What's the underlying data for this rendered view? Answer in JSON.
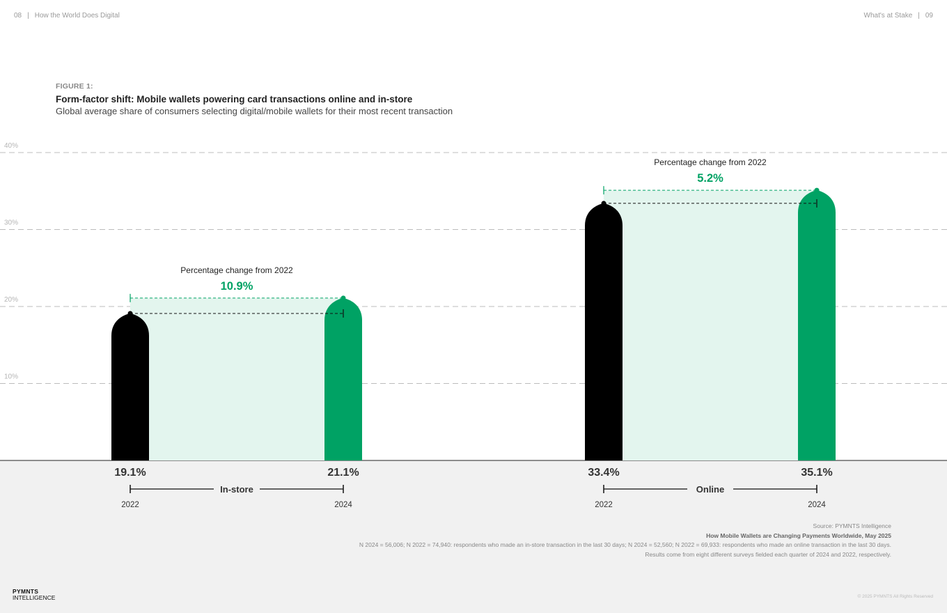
{
  "header": {
    "left_page": "08",
    "left_title": "How the World Does Digital",
    "right_title": "What's at Stake",
    "right_page": "09",
    "separator": "|"
  },
  "figure": {
    "label": "FIGURE 1:",
    "title": "Form-factor shift: Mobile wallets powering card transactions online and in-store",
    "subtitle": "Global average share of consumers selecting digital/mobile wallets for their most recent transaction"
  },
  "colors": {
    "bar_2022": "#000000",
    "bar_2024": "#00a264",
    "fill_between": "#e3f5ee",
    "grid": "#bcbcbc",
    "accent": "#00a264"
  },
  "chart_data": {
    "type": "bar",
    "y_ticks": [
      {
        "value": 10,
        "label": "10%"
      },
      {
        "value": 20,
        "label": "20%"
      },
      {
        "value": 30,
        "label": "30%"
      },
      {
        "value": 40,
        "label": "40%"
      }
    ],
    "ylim": [
      0,
      40
    ],
    "grid": true,
    "groups": [
      {
        "category": "In-store",
        "bars": [
          {
            "year": "2022",
            "value": 19.1,
            "label": "19.1%"
          },
          {
            "year": "2024",
            "value": 21.1,
            "label": "21.1%"
          }
        ],
        "change_label": "Percentage change from 2022",
        "change_value": "10.9%"
      },
      {
        "category": "Online",
        "bars": [
          {
            "year": "2022",
            "value": 33.4,
            "label": "33.4%"
          },
          {
            "year": "2024",
            "value": 35.1,
            "label": "35.1%"
          }
        ],
        "change_label": "Percentage change from 2022",
        "change_value": "5.2%"
      }
    ]
  },
  "notes": {
    "source": "Source: PYMNTS Intelligence",
    "report": "How Mobile Wallets are Changing Payments Worldwide, May 2025",
    "n_line": "N 2024 = 56,006; N 2022 = 74,940: respondents who made an in-store transaction in the last 30 days; N 2024 = 52,560; N 2022 = 69,933: respondents who made an online transaction in the last 30 days.",
    "results_line": "Results come from eight different surveys fielded each quarter of 2024 and 2022, respectively."
  },
  "footer": {
    "logo_line1": "PYMNTS",
    "logo_line2": "INTELLIGENCE",
    "copyright": "© 2025 PYMNTS All Rights Reserved"
  }
}
